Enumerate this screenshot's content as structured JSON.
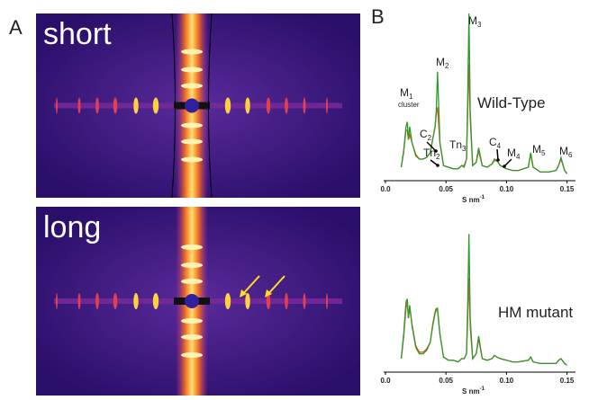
{
  "panel_a": {
    "label": "A",
    "images": [
      {
        "caption": "short"
      },
      {
        "caption": "long"
      }
    ]
  },
  "panel_b": {
    "label": "B"
  },
  "chart_data": [
    {
      "type": "line",
      "title": "Wild-Type",
      "x_label": {
        "text": "S nm",
        "sup": "-1"
      },
      "x": [
        0.013,
        0.015,
        0.017,
        0.018,
        0.019,
        0.02,
        0.022,
        0.025,
        0.028,
        0.031,
        0.034,
        0.037,
        0.039,
        0.041,
        0.042,
        0.043,
        0.045,
        0.048,
        0.052,
        0.056,
        0.06,
        0.063,
        0.065,
        0.067,
        0.068,
        0.069,
        0.07,
        0.072,
        0.075,
        0.077,
        0.08,
        0.084,
        0.088,
        0.09,
        0.092,
        0.095,
        0.1,
        0.105,
        0.11,
        0.118,
        0.12,
        0.122,
        0.128,
        0.135,
        0.141,
        0.143,
        0.145,
        0.148,
        0.15
      ],
      "xlim": [
        0,
        0.157
      ],
      "xticks": [
        {
          "value": 0,
          "label": "0.0"
        },
        0.05,
        {
          "value": 0.1,
          "label": "0.10"
        },
        0.15
      ],
      "ylim": [
        0,
        100
      ],
      "series": [
        {
          "color": "#e8541e",
          "values": [
            5,
            14,
            28,
            28,
            22,
            25,
            20,
            13,
            10,
            10,
            11,
            14,
            22,
            30,
            38,
            42,
            20,
            6,
            5,
            4,
            4,
            6,
            6,
            10,
            40,
            69,
            35,
            6,
            8,
            15,
            6,
            5,
            7,
            9,
            9,
            6,
            4,
            3,
            3,
            5,
            13,
            5,
            2,
            2,
            3,
            6,
            10,
            3,
            1
          ]
        },
        {
          "color": "#2e9a2e",
          "values": [
            5,
            15,
            30,
            33,
            22,
            30,
            20,
            12,
            10,
            10,
            11,
            14,
            22,
            30,
            40,
            64,
            20,
            6,
            5,
            4,
            4,
            6,
            5,
            10,
            50,
            100,
            40,
            6,
            8,
            17,
            6,
            5,
            7,
            10,
            9,
            6,
            4,
            3,
            3,
            5,
            14,
            5,
            2,
            2,
            3,
            6,
            11,
            3,
            1
          ]
        }
      ],
      "annotations": [
        {
          "text": "M",
          "sub": "1",
          "note": "cluster"
        },
        {
          "text": "M",
          "sub": "2"
        },
        {
          "text": "M",
          "sub": "3"
        },
        {
          "text": "C",
          "sub": "2"
        },
        {
          "text": "Tn",
          "sub": "2"
        },
        {
          "text": "Tn",
          "sub": "3"
        },
        {
          "text": "C",
          "sub": "4"
        },
        {
          "text": "M",
          "sub": "4"
        },
        {
          "text": "M",
          "sub": "5"
        },
        {
          "text": "M",
          "sub": "6"
        }
      ]
    },
    {
      "type": "line",
      "title": "HM mutant",
      "x_label": {
        "text": "S nm",
        "sup": "-1"
      },
      "x": [
        0.013,
        0.015,
        0.017,
        0.018,
        0.019,
        0.02,
        0.022,
        0.025,
        0.028,
        0.031,
        0.034,
        0.037,
        0.039,
        0.041,
        0.042,
        0.043,
        0.045,
        0.048,
        0.052,
        0.056,
        0.06,
        0.063,
        0.065,
        0.067,
        0.068,
        0.069,
        0.07,
        0.072,
        0.075,
        0.077,
        0.08,
        0.084,
        0.088,
        0.09,
        0.092,
        0.095,
        0.1,
        0.105,
        0.11,
        0.118,
        0.12,
        0.122,
        0.128,
        0.135,
        0.141,
        0.143,
        0.145,
        0.148,
        0.15
      ],
      "xlim": [
        0,
        0.157
      ],
      "xticks": [
        {
          "value": 0,
          "label": "0.0"
        },
        0.05,
        {
          "value": 0.1,
          "label": "0.10"
        },
        0.15
      ],
      "ylim": [
        0,
        100
      ],
      "series": [
        {
          "color": "#e8541e",
          "values": [
            5,
            18,
            36,
            40,
            30,
            37,
            26,
            13,
            9,
            9,
            11,
            15,
            26,
            34,
            36,
            35,
            20,
            6,
            4,
            4,
            3,
            5,
            5,
            8,
            30,
            55,
            25,
            5,
            8,
            17,
            5,
            4,
            5,
            7,
            6,
            5,
            4,
            3,
            3,
            4,
            6,
            3,
            2,
            2,
            2,
            4,
            5,
            2,
            1
          ]
        },
        {
          "color": "#2e9a2e",
          "values": [
            5,
            20,
            40,
            42,
            30,
            38,
            25,
            12,
            8,
            8,
            10,
            15,
            25,
            33,
            35,
            36,
            20,
            6,
            4,
            4,
            3,
            5,
            5,
            8,
            40,
            82,
            30,
            5,
            8,
            19,
            5,
            4,
            5,
            7,
            6,
            5,
            4,
            3,
            3,
            4,
            6,
            3,
            2,
            2,
            2,
            4,
            5,
            2,
            1
          ]
        }
      ]
    }
  ]
}
